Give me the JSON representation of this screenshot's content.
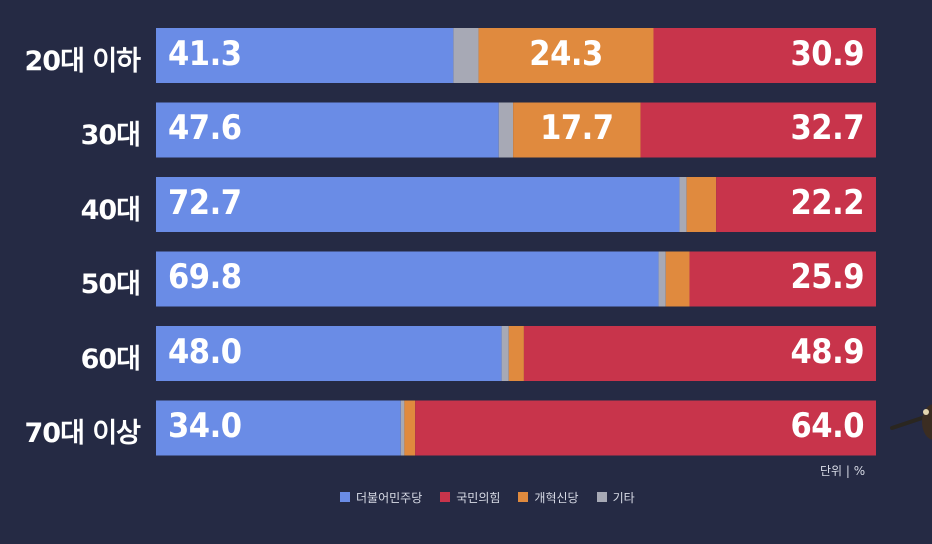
{
  "chart_data": {
    "type": "bar",
    "orientation": "horizontal",
    "stacked": true,
    "categories": [
      "20대 이하",
      "30대",
      "40대",
      "50대",
      "60대",
      "70대 이상"
    ],
    "series": [
      {
        "name": "더불어민주당",
        "color": "#6a8ce6",
        "values": [
          41.3,
          47.6,
          72.7,
          69.8,
          48.0,
          34.0
        ]
      },
      {
        "name": "기타",
        "color": "#a7a9b5",
        "values": [
          3.5,
          2.0,
          1.0,
          1.0,
          1.0,
          0.5
        ]
      },
      {
        "name": "개혁신당",
        "color": "#e08a3e",
        "values": [
          24.3,
          17.7,
          4.1,
          3.3,
          2.1,
          1.5
        ]
      },
      {
        "name": "국민의힘",
        "color": "#c8344b",
        "values": [
          30.9,
          32.7,
          22.2,
          25.9,
          48.9,
          64.0
        ]
      }
    ],
    "data_labels": [
      [
        "41.3",
        "",
        "24.3",
        "30.9"
      ],
      [
        "47.6",
        "",
        "17.7",
        "32.7"
      ],
      [
        "72.7",
        "",
        "",
        "22.2"
      ],
      [
        "69.8",
        "",
        "",
        "25.9"
      ],
      [
        "48.0",
        "",
        "",
        "48.9"
      ],
      [
        "34.0",
        "",
        "",
        "64.0"
      ]
    ],
    "xlim": [
      0,
      100
    ],
    "legend_position": "bottom",
    "unit_note": "단위 | %",
    "legend_order": [
      "더불어민주당",
      "국민의힘",
      "개혁신당",
      "기타"
    ]
  }
}
